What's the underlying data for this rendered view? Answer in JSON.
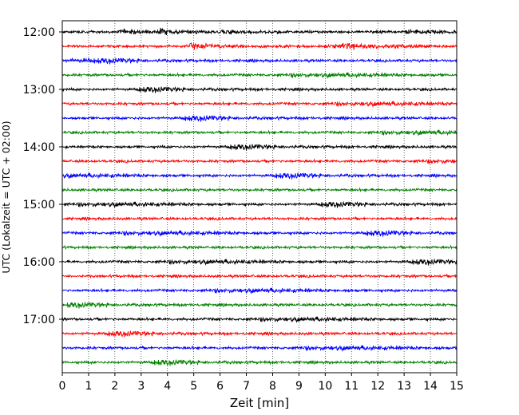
{
  "chart_data": {
    "type": "line",
    "title": "",
    "xlabel": "Zeit  [min]",
    "ylabel": "UTC (Lokalzeit = UTC + 02:00)",
    "xlim": [
      0,
      15
    ],
    "x_ticks": [
      "0",
      "1",
      "2",
      "3",
      "4",
      "5",
      "6",
      "7",
      "8",
      "9",
      "10",
      "11",
      "12",
      "13",
      "14",
      "15"
    ],
    "y_ticks": [
      "12:00",
      "13:00",
      "14:00",
      "15:00",
      "16:00",
      "17:00"
    ],
    "trace_interval_minutes": 15,
    "first_trace": "12:00",
    "trace_count": 24,
    "trace_colors": [
      "#000000",
      "#ff0000",
      "#0000ff",
      "#008000"
    ],
    "grid": {
      "vertical": "dotted",
      "horizontal": false
    },
    "legend": "none"
  }
}
